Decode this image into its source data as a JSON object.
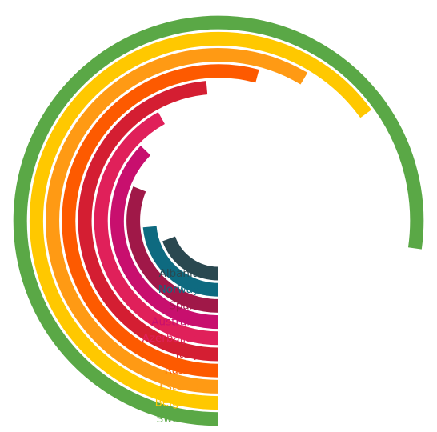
{
  "chart_data": {
    "type": "radial-bar",
    "title": "",
    "max_angle_deg": 360,
    "series": [
      {
        "name": "Albania",
        "value": 70,
        "color": "#2a4850"
      },
      {
        "name": "Norway",
        "value": 85,
        "color": "#0e6a80"
      },
      {
        "name": "Spain",
        "value": 112,
        "color": "#a01848"
      },
      {
        "name": "Australia",
        "value": 134,
        "color": "#c80f6e"
      },
      {
        "name": "Azerbaijan",
        "value": 151,
        "color": "#e0205a"
      },
      {
        "name": "Italy",
        "value": 175,
        "color": "#d41e32"
      },
      {
        "name": "Russia",
        "value": 195,
        "color": "#fd5a00"
      },
      {
        "name": "Estonia",
        "value": 211,
        "color": "#ff9a14"
      },
      {
        "name": "Belgium",
        "value": 234,
        "color": "#ffc800"
      },
      {
        "name": "Sweden",
        "value": 278,
        "color": "#5aa846"
      }
    ]
  }
}
